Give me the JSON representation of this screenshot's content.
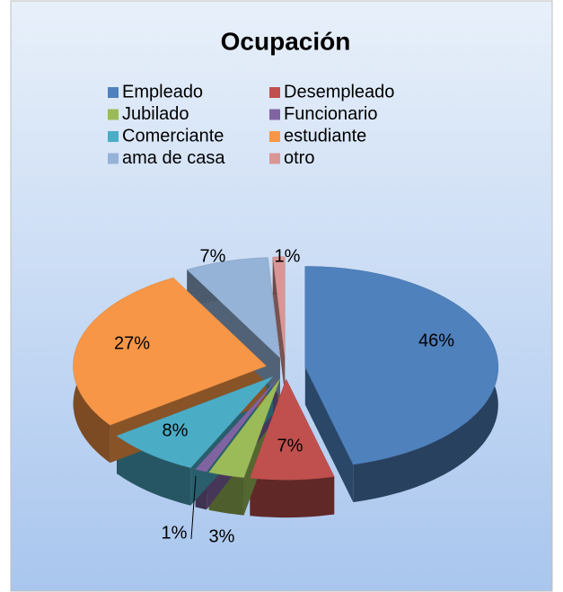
{
  "chart_data": {
    "type": "pie3d",
    "title": "Ocupación",
    "categories": [
      "Empleado",
      "Desempleado",
      "Jubilado",
      "Funcionario",
      "Comerciante",
      "estudiante",
      "ama de casa",
      "otro"
    ],
    "values": [
      46,
      7,
      3,
      1,
      8,
      27,
      7,
      1
    ],
    "value_labels": [
      "46%",
      "7%",
      "3%",
      "1%",
      "8%",
      "27%",
      "7%",
      "1%"
    ],
    "colors": [
      "#4f81bd",
      "#c0504d",
      "#9bbb59",
      "#8064a2",
      "#4bacc6",
      "#f79646",
      "#95b3d7",
      "#d99694"
    ],
    "legend": "top"
  }
}
